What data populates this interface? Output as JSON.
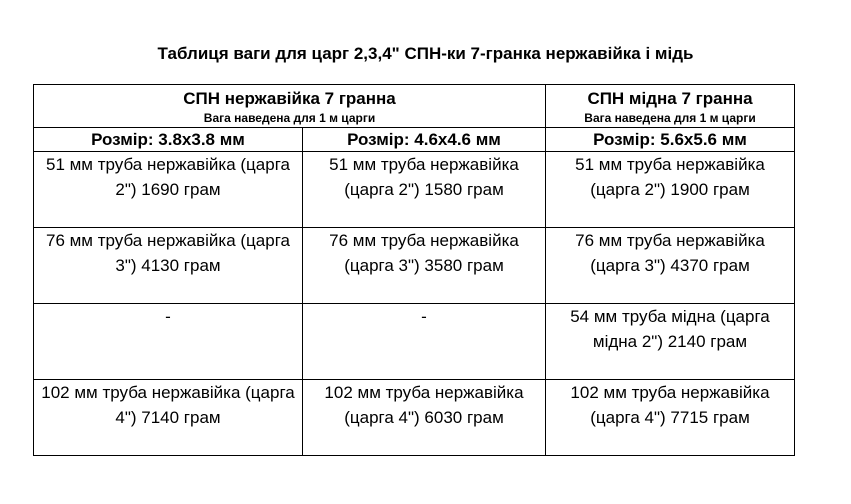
{
  "title": "Таблиця ваги для царг 2,3,4\" СПН-ки 7-гранка нержавійка і мідь",
  "groups": [
    {
      "title": "СПН нержавійка 7 гранна",
      "note": "Вага наведена для 1 м царги"
    },
    {
      "title": "СПН мідна 7 гранна",
      "note": "Вага наведена для 1 м царги"
    }
  ],
  "sizes": [
    "Розмір: 3.8x3.8 мм",
    "Розмір: 4.6x4.6 мм",
    "Розмір: 5.6x5.6 мм"
  ],
  "rows": [
    [
      "51 мм труба нержавійка (царга 2\") 1690 грам",
      "51 мм труба нержавійка (царга 2\") 1580 грам",
      "51 мм труба нержавійка (царга 2\") 1900 грам"
    ],
    [
      "76 мм труба нержавійка (царга 3\") 4130 грам",
      "76 мм труба нержавійка (царга 3\") 3580 грам",
      "76 мм труба нержавійка (царга 3\") 4370 грам"
    ],
    [
      "-",
      "-",
      "54 мм труба мідна (царга мідна 2\") 2140 грам"
    ],
    [
      "102 мм труба нержавійка (царга 4\") 7140 грам",
      "102 мм труба нержавійка (царга 4\") 6030 грам",
      "102 мм труба нержавійка (царга 4\") 7715 грам"
    ]
  ]
}
